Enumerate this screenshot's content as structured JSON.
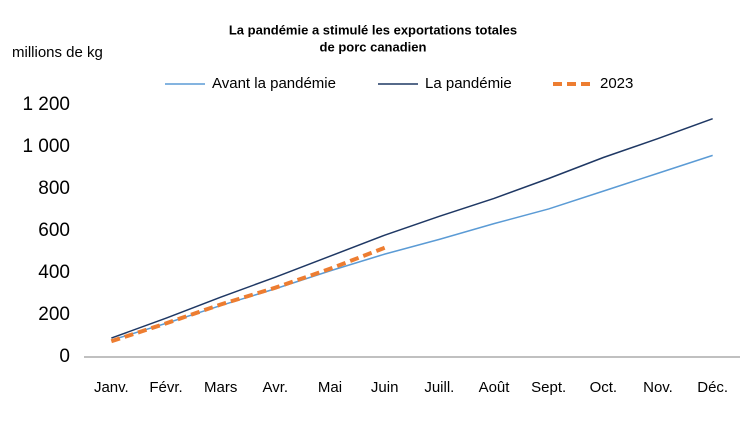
{
  "chart_data": {
    "type": "line",
    "title": [
      "La pandémie a stimulé les exportations totales",
      "de porc canadien"
    ],
    "y_label": "millions de kg",
    "categories": [
      "Janv.",
      "Févr.",
      "Mars",
      "Avr.",
      "Mai",
      "Juin",
      "Juill.",
      "Août",
      "Sept.",
      "Oct.",
      "Nov.",
      "Déc."
    ],
    "series": [
      {
        "name": "Avant la pandémie",
        "color": "#5b9bd5",
        "values": [
          80,
          160,
          245,
          325,
          410,
          490,
          560,
          635,
          705,
          790,
          875,
          960
        ]
      },
      {
        "name": "La pandémie",
        "color": "#1f3864",
        "values": [
          90,
          185,
          285,
          380,
          480,
          580,
          670,
          755,
          850,
          950,
          1040,
          1135
        ]
      },
      {
        "name": "2023",
        "color": "#ed7d31",
        "dashed": true,
        "values": [
          75,
          160,
          250,
          330,
          420,
          520,
          null,
          null,
          null,
          null,
          null,
          null
        ]
      }
    ],
    "ylim": [
      0,
      1200
    ],
    "yticks": [
      0,
      200,
      400,
      600,
      800,
      {
        "value": 1000,
        "label": "1 000"
      },
      {
        "value": 1200,
        "label": "1 200"
      }
    ],
    "grid": false,
    "legend": "top"
  }
}
